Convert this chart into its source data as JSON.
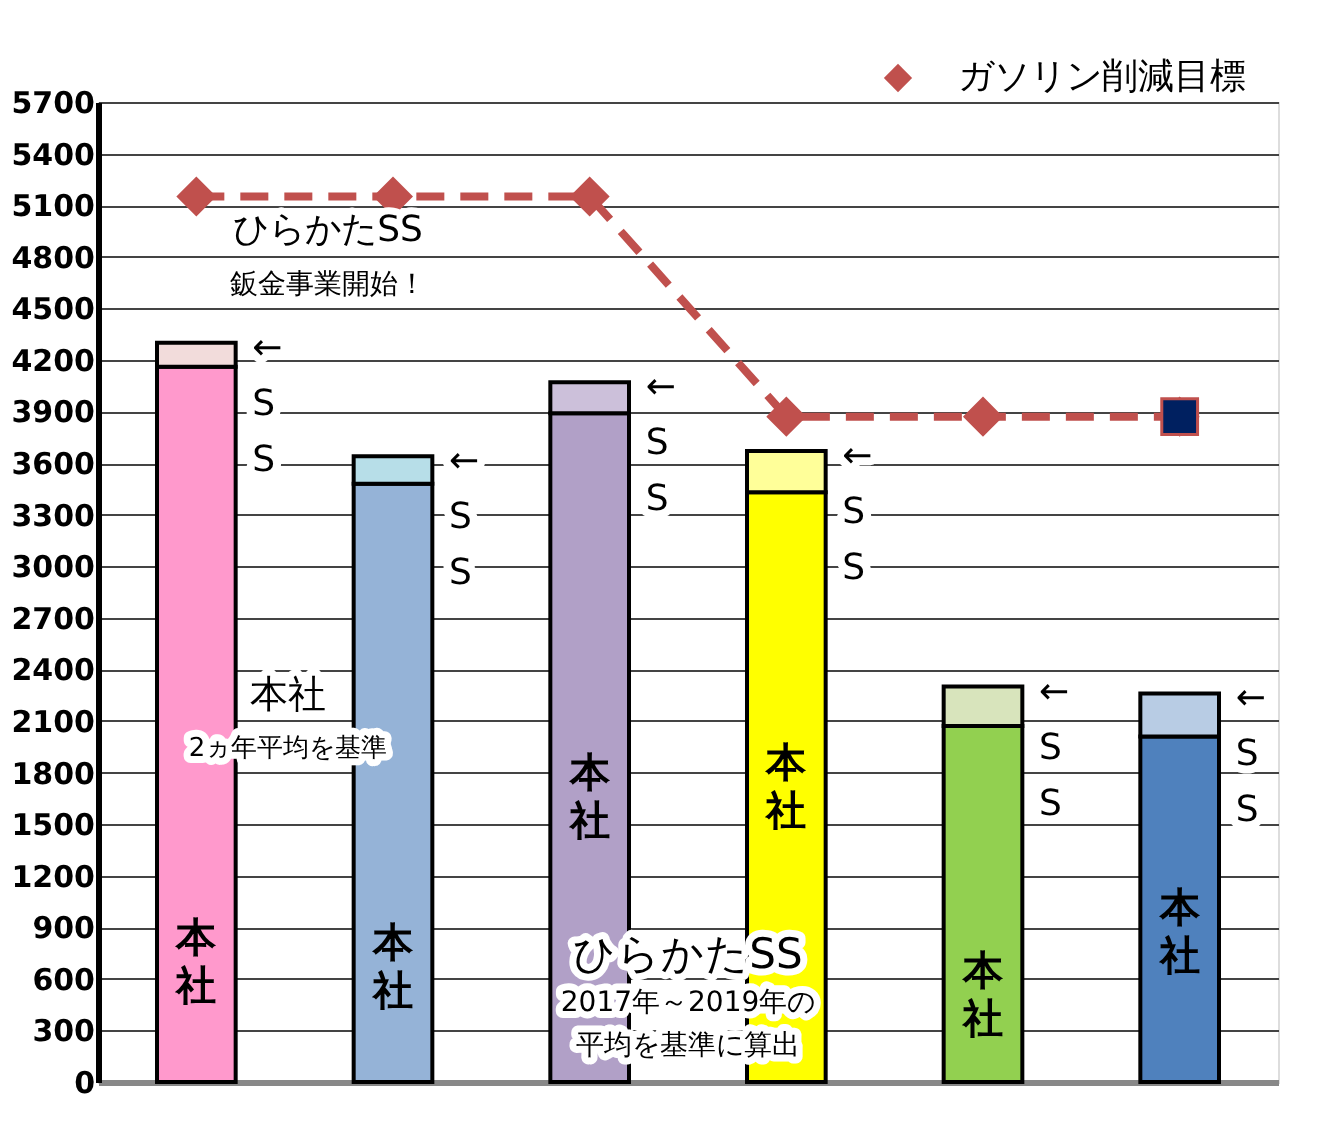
{
  "chart_data": {
    "type": "bar",
    "stacked": true,
    "categories": [
      null,
      null,
      null,
      null,
      null,
      null
    ],
    "series": [
      {
        "name": "本社",
        "colors": [
          "#ff99cc",
          "#95b3d7",
          "#b1a0c7",
          "#ffff00",
          "#92d050",
          "#4f81bd"
        ],
        "values": [
          4160,
          3480,
          3890,
          3430,
          2070,
          2010
        ]
      },
      {
        "name": "←SS",
        "colors": [
          "#f2dcdb",
          "#b7dee8",
          "#ccc0da",
          "#ffff99",
          "#d8e4bc",
          "#b8cce4"
        ],
        "values": [
          140,
          160,
          180,
          240,
          230,
          250
        ]
      },
      {
        "name": "ガソリン削減目標",
        "type": "line",
        "color": "#c0504d",
        "marker": "diamond",
        "line_style": "dashed",
        "values": [
          5150,
          5150,
          5150,
          3870,
          3870,
          3870
        ]
      },
      {
        "type": "scatter",
        "color": "#002060",
        "marker": "square",
        "values": [
          null,
          null,
          null,
          null,
          null,
          3870
        ]
      }
    ],
    "ylim": [
      0,
      5700
    ],
    "yticks": [
      0,
      300,
      600,
      900,
      1200,
      1500,
      1800,
      2100,
      2400,
      2700,
      3000,
      3300,
      3600,
      3900,
      4200,
      4500,
      4800,
      5100,
      5400,
      5700
    ],
    "grid": "y",
    "legend": "top right",
    "annotations": [
      "ひらかたSS",
      "鈑金事業開始！",
      "本社",
      "2ヵ年平均を基準",
      "ひらかたSS",
      "2017年～2019年の",
      "平均を基準に算出"
    ]
  }
}
